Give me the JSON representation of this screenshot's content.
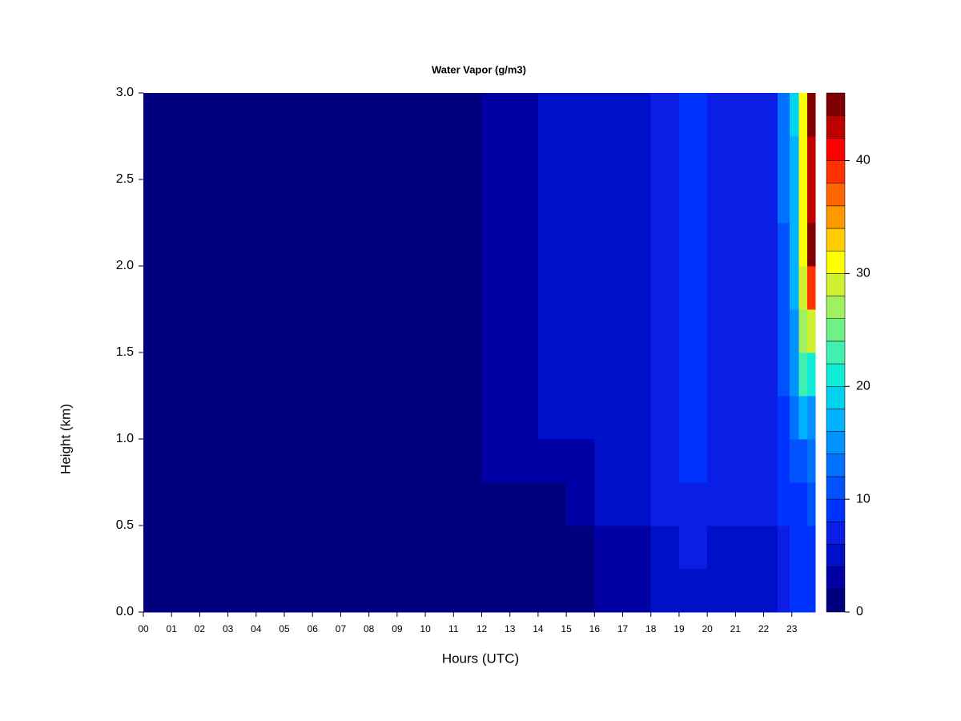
{
  "chart_data": {
    "type": "heatmap",
    "title": "Water Vapor (g/m3)",
    "x_label": "Hours (UTC)",
    "y_label": "Height (km)",
    "x": [
      0.5,
      1.5,
      2.5,
      3.5,
      4.5,
      5.5,
      6.5,
      7.5,
      8.5,
      9.5,
      10.5,
      11.5,
      12.5,
      13.5,
      14.5,
      15.5,
      16.5,
      17.5,
      18.5,
      19.5,
      20.5,
      21.5,
      22.25,
      22.75,
      23.1,
      23.4,
      23.7
    ],
    "y": [
      0.125,
      0.375,
      0.625,
      0.875,
      1.125,
      1.375,
      1.625,
      1.875,
      2.125,
      2.375,
      2.625,
      2.875
    ],
    "z": [
      [
        1,
        1,
        1,
        1,
        1,
        1,
        1,
        1,
        1,
        1,
        1,
        1,
        1,
        1,
        1,
        1,
        3,
        3,
        5,
        5,
        5,
        5,
        5,
        7,
        8,
        8,
        9
      ],
      [
        1,
        1,
        1,
        1,
        1,
        1,
        1,
        1,
        1,
        1,
        1,
        1,
        1,
        1,
        1,
        1,
        3,
        3,
        5,
        6,
        5,
        5,
        5,
        7,
        8,
        8,
        9
      ],
      [
        1,
        1,
        1,
        1,
        1,
        1,
        1,
        1,
        1,
        1,
        1,
        1,
        1,
        1,
        1,
        3,
        5,
        5,
        6,
        7,
        6,
        6,
        6,
        8,
        9,
        9,
        10
      ],
      [
        1,
        1,
        1,
        1,
        1,
        1,
        1,
        1,
        1,
        1,
        1,
        1,
        3,
        3,
        3,
        3,
        5,
        5,
        6,
        8,
        6,
        6,
        6,
        8,
        10,
        11,
        12
      ],
      [
        1,
        1,
        1,
        1,
        1,
        1,
        1,
        1,
        1,
        1,
        1,
        1,
        3,
        3,
        5,
        5,
        5,
        5,
        6,
        8,
        7,
        7,
        6,
        9,
        12,
        16,
        15
      ],
      [
        1,
        1,
        1,
        1,
        1,
        1,
        1,
        1,
        1,
        1,
        1,
        1,
        3,
        3,
        5,
        5,
        5,
        5,
        6,
        9,
        7,
        7,
        7,
        10,
        14,
        22,
        20
      ],
      [
        1,
        1,
        1,
        1,
        1,
        1,
        1,
        1,
        1,
        1,
        1,
        1,
        3,
        3,
        5,
        5,
        5,
        5,
        6,
        9,
        7,
        7,
        7,
        10,
        15,
        26,
        29
      ],
      [
        1,
        1,
        1,
        1,
        1,
        1,
        1,
        1,
        1,
        1,
        1,
        1,
        3,
        3,
        5,
        5,
        5,
        5,
        6,
        9,
        7,
        7,
        7,
        11,
        16,
        28,
        38
      ],
      [
        1,
        1,
        1,
        1,
        1,
        1,
        1,
        1,
        1,
        1,
        1,
        1,
        3,
        3,
        5,
        5,
        5,
        5,
        6,
        9,
        7,
        7,
        7,
        11,
        16,
        30,
        44
      ],
      [
        1,
        1,
        1,
        1,
        1,
        1,
        1,
        1,
        1,
        1,
        1,
        1,
        3,
        3,
        5,
        5,
        5,
        5,
        6,
        9,
        7,
        7,
        7,
        12,
        17,
        30,
        43
      ],
      [
        1,
        1,
        1,
        1,
        1,
        1,
        1,
        1,
        1,
        1,
        1,
        1,
        3,
        3,
        5,
        5,
        5,
        5,
        6,
        9,
        7,
        7,
        7,
        12,
        17,
        31,
        42
      ],
      [
        1,
        1,
        1,
        1,
        1,
        1,
        1,
        1,
        1,
        1,
        1,
        1,
        3,
        3,
        5,
        5,
        5,
        5,
        6,
        9,
        7,
        7,
        7,
        13,
        18,
        31,
        44
      ]
    ],
    "xlim": [
      0,
      23.83
    ],
    "ylim": [
      0,
      3
    ],
    "xticks": [
      {
        "value": 0,
        "label": "00"
      },
      {
        "value": 1,
        "label": "01"
      },
      {
        "value": 2,
        "label": "02"
      },
      {
        "value": 3,
        "label": "03"
      },
      {
        "value": 4,
        "label": "04"
      },
      {
        "value": 5,
        "label": "05"
      },
      {
        "value": 6,
        "label": "06"
      },
      {
        "value": 7,
        "label": "07"
      },
      {
        "value": 8,
        "label": "08"
      },
      {
        "value": 9,
        "label": "09"
      },
      10,
      11,
      12,
      13,
      14,
      15,
      16,
      17,
      18,
      19,
      20,
      21,
      22,
      23
    ],
    "yticks": [
      {
        "value": 0,
        "label": "0.0"
      },
      0.5,
      {
        "value": 1,
        "label": "1.0"
      },
      1.5,
      {
        "value": 2,
        "label": "2.0"
      },
      2.5,
      {
        "value": 3,
        "label": "3.0"
      }
    ],
    "levels": [
      0,
      2,
      4,
      6,
      8,
      10,
      12,
      14,
      16,
      18,
      20,
      22,
      24,
      26,
      28,
      30,
      32,
      34,
      36,
      38,
      40,
      42,
      44,
      46
    ],
    "colors": [
      "#00007f",
      "#0000a4",
      "#0010c8",
      "#0a1ee6",
      "#0033ff",
      "#0052ff",
      "#0072ff",
      "#0092ff",
      "#00b2ff",
      "#00d2f0",
      "#10ecd8",
      "#40f0b0",
      "#70f088",
      "#a0f060",
      "#d0f030",
      "#ffff00",
      "#ffcc00",
      "#ff9900",
      "#ff6600",
      "#ff3300",
      "#ff0000",
      "#bf0000",
      "#7f0000"
    ],
    "colorbar_ticks": [
      0,
      10,
      20,
      30,
      40
    ]
  }
}
